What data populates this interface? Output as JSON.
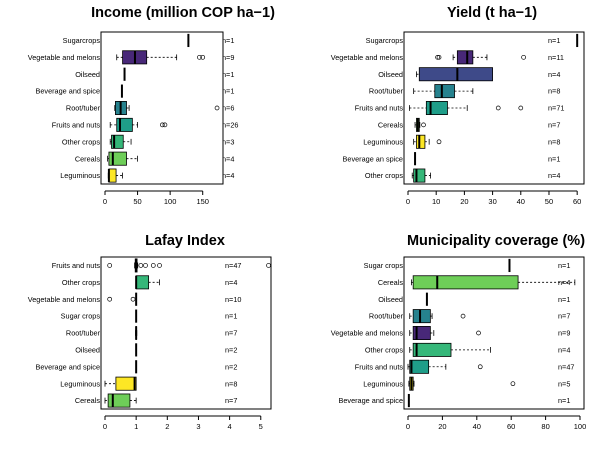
{
  "chart_data": [
    {
      "type": "boxplot",
      "title": "Income (million COP ha−1)",
      "xlim": [
        0,
        175
      ],
      "xticks": [
        "0",
        "50",
        "100",
        "150"
      ],
      "xtick_values": [
        0,
        50,
        100,
        150
      ],
      "legend": "none",
      "boxes": [
        {
          "label": "Sugarcrops",
          "n": "n=1",
          "min": 128,
          "q1": 128,
          "median": 128,
          "q3": 128,
          "max": 128,
          "outliers": [],
          "color": "#440154"
        },
        {
          "label": "Vegetable and melons",
          "n": "n=9",
          "min": 18,
          "q1": 27,
          "median": 46,
          "q3": 64,
          "max": 110,
          "outliers": [
            145,
            150
          ],
          "color": "#482878"
        },
        {
          "label": "Oilseed",
          "n": "n=1",
          "min": 30,
          "q1": 30,
          "median": 30,
          "q3": 30,
          "max": 30,
          "outliers": [],
          "color": "#3e4a89"
        },
        {
          "label": "Beverage and spice",
          "n": "n=1",
          "min": 26,
          "q1": 26,
          "median": 26,
          "q3": 26,
          "max": 26,
          "outliers": [],
          "color": "#31688e"
        },
        {
          "label": "Root/tuber",
          "n": "n=6",
          "min": 15,
          "q1": 16,
          "median": 24,
          "q3": 33,
          "max": 37,
          "outliers": [
            172
          ],
          "color": "#26828e"
        },
        {
          "label": "Fruits and nuts",
          "n": "n=26",
          "min": 8,
          "q1": 18,
          "median": 23,
          "q3": 42,
          "max": 50,
          "outliers": [
            88,
            92
          ],
          "color": "#1f9e89"
        },
        {
          "label": "Other crops",
          "n": "n=3",
          "min": 8,
          "q1": 10,
          "median": 14,
          "q3": 28,
          "max": 40,
          "outliers": [],
          "color": "#35b779"
        },
        {
          "label": "Cereals",
          "n": "n=4",
          "min": 4,
          "q1": 6,
          "median": 12,
          "q3": 33,
          "max": 50,
          "outliers": [],
          "color": "#6ece58"
        },
        {
          "label": "Leguminous",
          "n": "n=4",
          "min": 5,
          "q1": 6,
          "median": 6,
          "q3": 17,
          "max": 27,
          "outliers": [],
          "color": "#fde725"
        }
      ]
    },
    {
      "type": "boxplot",
      "title": "Yield (t ha−1)",
      "xlim": [
        0,
        61
      ],
      "xticks": [
        "0",
        "10",
        "20",
        "30",
        "40",
        "50",
        "60"
      ],
      "xtick_values": [
        0,
        10,
        20,
        30,
        40,
        50,
        60
      ],
      "legend": "none",
      "boxes": [
        {
          "label": "Sugarcrops",
          "n": "n=1",
          "min": 60,
          "q1": 60,
          "median": 60,
          "q3": 60,
          "max": 60,
          "outliers": [],
          "color": "#440154"
        },
        {
          "label": "Vegetable and melons",
          "n": "n=11",
          "min": 16,
          "q1": 17.5,
          "median": 21,
          "q3": 23,
          "max": 28,
          "outliers": [
            11,
            10.5,
            41
          ],
          "color": "#482878"
        },
        {
          "label": "Oilseed",
          "n": "n=4",
          "min": 3,
          "q1": 4,
          "median": 17.5,
          "q3": 30,
          "max": 30,
          "outliers": [],
          "color": "#3e4a89"
        },
        {
          "label": "Root/tuber",
          "n": "n=8",
          "min": 2,
          "q1": 9.5,
          "median": 12,
          "q3": 16.5,
          "max": 23,
          "outliers": [],
          "color": "#26828e"
        },
        {
          "label": "Fruits and nuts",
          "n": "n=71",
          "min": 0.5,
          "q1": 6.5,
          "median": 8,
          "q3": 14,
          "max": 21,
          "outliers": [
            32,
            40
          ],
          "color": "#1f9e89"
        },
        {
          "label": "Cereals",
          "n": "n=7",
          "min": 2.5,
          "q1": 3,
          "median": 3.5,
          "q3": 4,
          "max": 4.2,
          "outliers": [
            5.5
          ],
          "color": "#6ece58"
        },
        {
          "label": "Leguminous",
          "n": "n=8",
          "min": 2,
          "q1": 3,
          "median": 4,
          "q3": 6,
          "max": 7.5,
          "outliers": [
            11
          ],
          "color": "#fde725"
        },
        {
          "label": "Beverage an spice",
          "n": "n=1",
          "min": 2.5,
          "q1": 2.5,
          "median": 2.5,
          "q3": 2.5,
          "max": 2.5,
          "outliers": [],
          "color": "#31688e"
        },
        {
          "label": "Other crops",
          "n": "n=4",
          "min": 1.5,
          "q1": 2,
          "median": 3,
          "q3": 6,
          "max": 8,
          "outliers": [],
          "color": "#35b779"
        }
      ]
    },
    {
      "type": "boxplot",
      "title": "Lafay Index",
      "xlim": [
        0,
        5.2
      ],
      "xticks": [
        "0",
        "1",
        "2",
        "3",
        "4",
        "5"
      ],
      "xtick_values": [
        0,
        1,
        2,
        3,
        4,
        5
      ],
      "legend": "none",
      "boxes": [
        {
          "label": "Fruits and nuts",
          "n": "n=47",
          "min": 0.95,
          "q1": 0.97,
          "median": 1.0,
          "q3": 1.03,
          "max": 1.05,
          "outliers": [
            0.15,
            1.15,
            1.3,
            1.55,
            1.75,
            5.25
          ],
          "color": "#1f9e89"
        },
        {
          "label": "Other crops",
          "n": "n=4",
          "min": 1.0,
          "q1": 1.0,
          "median": 1.0,
          "q3": 1.4,
          "max": 1.75,
          "outliers": [],
          "color": "#35b779"
        },
        {
          "label": "Vegetable and melons",
          "n": "n=10",
          "min": 1.0,
          "q1": 1.0,
          "median": 1.0,
          "q3": 1.0,
          "max": 1.0,
          "outliers": [
            0.15,
            0.9
          ],
          "color": "#482878"
        },
        {
          "label": "Sugar crops",
          "n": "n=1",
          "min": 1.0,
          "q1": 1.0,
          "median": 1.0,
          "q3": 1.0,
          "max": 1.0,
          "outliers": [],
          "color": "#440154"
        },
        {
          "label": "Root/tuber",
          "n": "n=7",
          "min": 0.98,
          "q1": 0.99,
          "median": 1.0,
          "q3": 1.01,
          "max": 1.02,
          "outliers": [],
          "color": "#26828e"
        },
        {
          "label": "Oilseed",
          "n": "n=2",
          "min": 1.0,
          "q1": 1.0,
          "median": 1.0,
          "q3": 1.0,
          "max": 1.0,
          "outliers": [],
          "color": "#3e4a89"
        },
        {
          "label": "Beverage and spice",
          "n": "n=2",
          "min": 1.0,
          "q1": 1.0,
          "median": 1.0,
          "q3": 1.0,
          "max": 1.0,
          "outliers": [],
          "color": "#31688e"
        },
        {
          "label": "Leguminous",
          "n": "n=8",
          "min": 0.0,
          "q1": 0.35,
          "median": 0.95,
          "q3": 1.0,
          "max": 1.0,
          "outliers": [],
          "color": "#fde725"
        },
        {
          "label": "Cereals",
          "n": "n=7",
          "min": 0.0,
          "q1": 0.1,
          "median": 0.25,
          "q3": 0.8,
          "max": 1.0,
          "outliers": [],
          "color": "#6ece58"
        }
      ]
    },
    {
      "type": "boxplot",
      "title": "Municipality coverage (%)",
      "xlim": [
        0,
        100
      ],
      "xticks": [
        "0",
        "20",
        "40",
        "60",
        "80",
        "100"
      ],
      "xtick_values": [
        0,
        20,
        40,
        60,
        80,
        100
      ],
      "legend": "none",
      "boxes": [
        {
          "label": "Sugar crops",
          "n": "n=1",
          "min": 59,
          "q1": 59,
          "median": 59,
          "q3": 59,
          "max": 59,
          "outliers": [],
          "color": "#440154"
        },
        {
          "label": "Cereals",
          "n": "n=4",
          "min": 2,
          "q1": 3,
          "median": 17,
          "q3": 64,
          "max": 97,
          "outliers": [],
          "color": "#6ece58"
        },
        {
          "label": "Oilseed",
          "n": "n=1",
          "min": 11,
          "q1": 11,
          "median": 11,
          "q3": 11,
          "max": 11,
          "outliers": [],
          "color": "#3e4a89"
        },
        {
          "label": "Root/tuber",
          "n": "n=7",
          "min": 1,
          "q1": 3,
          "median": 7,
          "q3": 13,
          "max": 14,
          "outliers": [
            32
          ],
          "color": "#26828e"
        },
        {
          "label": "Vegetable and melons",
          "n": "n=9",
          "min": 1,
          "q1": 3,
          "median": 5,
          "q3": 13,
          "max": 15,
          "outliers": [
            41
          ],
          "color": "#482878"
        },
        {
          "label": "Other crops",
          "n": "n=4",
          "min": 1,
          "q1": 3,
          "median": 5,
          "q3": 25,
          "max": 48,
          "outliers": [],
          "color": "#35b779"
        },
        {
          "label": "Fruits and nuts",
          "n": "n=47",
          "min": 0,
          "q1": 1,
          "median": 2,
          "q3": 12,
          "max": 22,
          "outliers": [
            42
          ],
          "color": "#1f9e89"
        },
        {
          "label": "Leguminous",
          "n": "n=5",
          "min": 0.5,
          "q1": 1,
          "median": 2,
          "q3": 3,
          "max": 3.5,
          "outliers": [
            61
          ],
          "color": "#fde725"
        },
        {
          "label": "Beverage and spice",
          "n": "n=1",
          "min": 0.5,
          "q1": 0.5,
          "median": 0.5,
          "q3": 0.5,
          "max": 0.5,
          "outliers": [],
          "color": "#31688e"
        }
      ]
    }
  ]
}
